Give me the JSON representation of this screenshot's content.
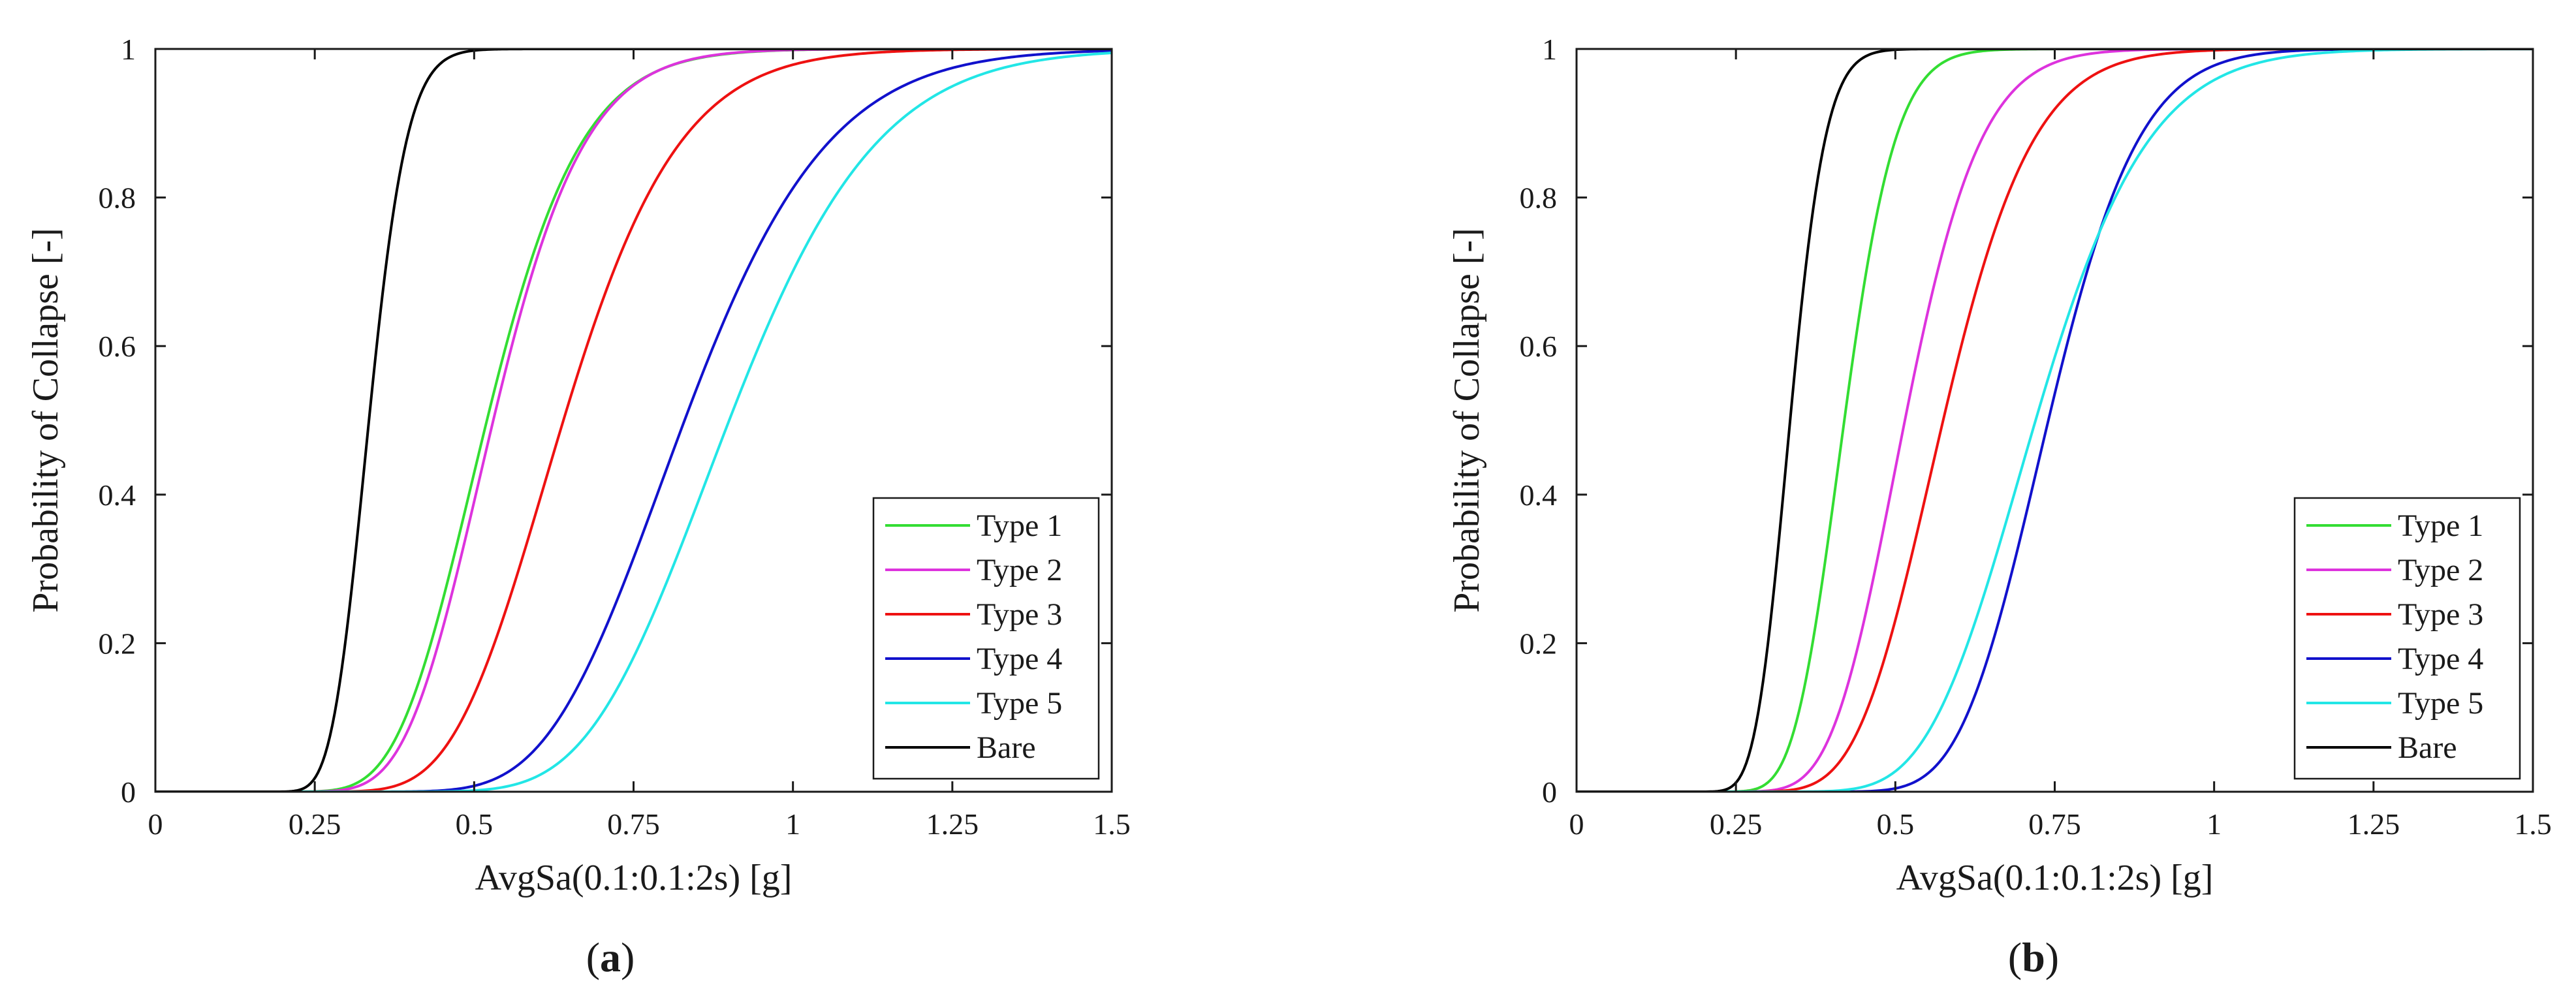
{
  "chart_data": [
    {
      "type": "line",
      "panel_label": "a",
      "xlabel": "AvgSa(0.1:0.1:2s) [g]",
      "ylabel": "Probability of Collapse [-]",
      "xlim": [
        0,
        1.5
      ],
      "ylim": [
        0,
        1
      ],
      "xticks": [
        0,
        0.25,
        0.5,
        0.75,
        1,
        1.25,
        1.5
      ],
      "xtick_labels": [
        "0",
        "0.25",
        "0.5",
        "0.75",
        "1",
        "1.25",
        "1.5"
      ],
      "yticks": [
        0,
        0.2,
        0.4,
        0.6,
        0.8,
        1
      ],
      "ytick_labels": [
        "0",
        "0.2",
        "0.4",
        "0.6",
        "0.8",
        "1"
      ],
      "legend_position": "bottom-right",
      "grid": false,
      "series": [
        {
          "name": "Type 1",
          "color": "#33dd33",
          "median": 0.52,
          "beta": 0.22
        },
        {
          "name": "Type 2",
          "color": "#dd33dd",
          "median": 0.53,
          "beta": 0.21
        },
        {
          "name": "Type 3",
          "color": "#ee1111",
          "median": 0.64,
          "beta": 0.22
        },
        {
          "name": "Type 4",
          "color": "#1111cc",
          "median": 0.83,
          "beta": 0.21
        },
        {
          "name": "Type 5",
          "color": "#22e6e6",
          "median": 0.9,
          "beta": 0.2
        },
        {
          "name": "Bare",
          "color": "#000000",
          "median": 0.335,
          "beta": 0.14
        }
      ]
    },
    {
      "type": "line",
      "panel_label": "b",
      "xlabel": "AvgSa(0.1:0.1:2s) [g]",
      "ylabel": "Probability of Collapse [-]",
      "xlim": [
        0,
        1.5
      ],
      "ylim": [
        0,
        1
      ],
      "xticks": [
        0,
        0.25,
        0.5,
        0.75,
        1,
        1.25,
        1.5
      ],
      "xtick_labels": [
        "0",
        "0.25",
        "0.5",
        "0.75",
        "1",
        "1.25",
        "1.5"
      ],
      "yticks": [
        0,
        0.2,
        0.4,
        0.6,
        0.8,
        1
      ],
      "ytick_labels": [
        "0",
        "0.2",
        "0.4",
        "0.6",
        "0.8",
        "1"
      ],
      "legend_position": "bottom-right",
      "grid": false,
      "series": [
        {
          "name": "Type 1",
          "color": "#33dd33",
          "median": 0.42,
          "beta": 0.15
        },
        {
          "name": "Type 2",
          "color": "#dd33dd",
          "median": 0.515,
          "beta": 0.18
        },
        {
          "name": "Type 3",
          "color": "#ee1111",
          "median": 0.575,
          "beta": 0.19
        },
        {
          "name": "Type 4",
          "color": "#1111cc",
          "median": 0.74,
          "beta": 0.15
        },
        {
          "name": "Type 5",
          "color": "#22e6e6",
          "median": 0.72,
          "beta": 0.19
        },
        {
          "name": "Bare",
          "color": "#000000",
          "median": 0.335,
          "beta": 0.13
        }
      ]
    }
  ]
}
